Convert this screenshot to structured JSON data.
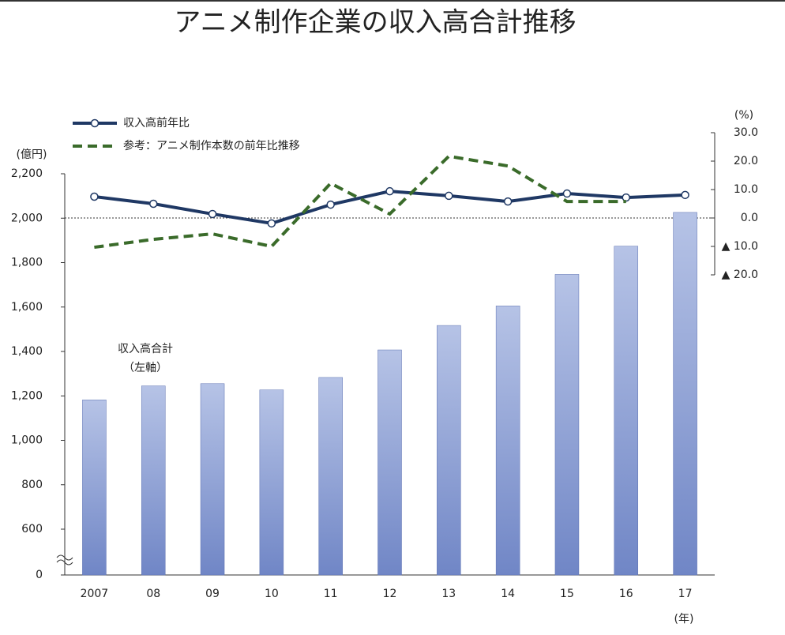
{
  "chart_data": {
    "type": "bar-line",
    "title": "アニメ制作企業の収入高合計推移",
    "ylabel": "(億円)",
    "y2label": "(%)",
    "xlabel": "(年)",
    "categories": [
      "2007",
      "08",
      "09",
      "10",
      "11",
      "12",
      "13",
      "14",
      "15",
      "16",
      "17"
    ],
    "series": [
      {
        "name": "収入高合計",
        "annotation": "（左軸）",
        "type": "bar",
        "color": "#8fa3d6",
        "values": [
          1182,
          1245,
          1255,
          1227,
          1283,
          1407,
          1517,
          1605,
          1747,
          1874,
          2026
        ]
      },
      {
        "name": "収入高前年比",
        "type": "line",
        "axis": "y2",
        "color": "#1f3864",
        "marker": "circle",
        "values": [
          7.5,
          5.0,
          1.4,
          -1.9,
          4.7,
          9.4,
          7.8,
          5.8,
          8.6,
          7.2,
          8.1
        ]
      },
      {
        "name": "参考：アニメ制作本数の前年比推移",
        "type": "line",
        "axis": "y2",
        "color": "#3a6b2a",
        "dash": true,
        "values": [
          -10.3,
          -7.5,
          -5.6,
          -10.0,
          12.2,
          1.4,
          21.7,
          18.3,
          5.8,
          5.8,
          null
        ]
      }
    ],
    "ylim": [
      0,
      2200
    ],
    "ybreak": [
      0,
      600
    ],
    "yticks": [
      0,
      600,
      800,
      {
        "value": 1000,
        "label": "1,000"
      },
      {
        "value": 1200,
        "label": "1,200"
      },
      {
        "value": 1400,
        "label": "1,400"
      },
      {
        "value": 1600,
        "label": "1,600"
      },
      {
        "value": 1800,
        "label": "1,800"
      },
      {
        "value": 2000,
        "label": "2,000"
      },
      {
        "value": 2200,
        "label": "2,200"
      }
    ],
    "y2lim": [
      -20,
      30
    ],
    "y2ticks": [
      {
        "value": 30,
        "label": "30.0"
      },
      {
        "value": 20,
        "label": "20.0"
      },
      {
        "value": 10,
        "label": "10.0"
      },
      {
        "value": 0,
        "label": "0.0"
      },
      {
        "value": -10,
        "label": "▲ 10.0"
      },
      {
        "value": -20,
        "label": "▲ 20.0"
      }
    ]
  }
}
